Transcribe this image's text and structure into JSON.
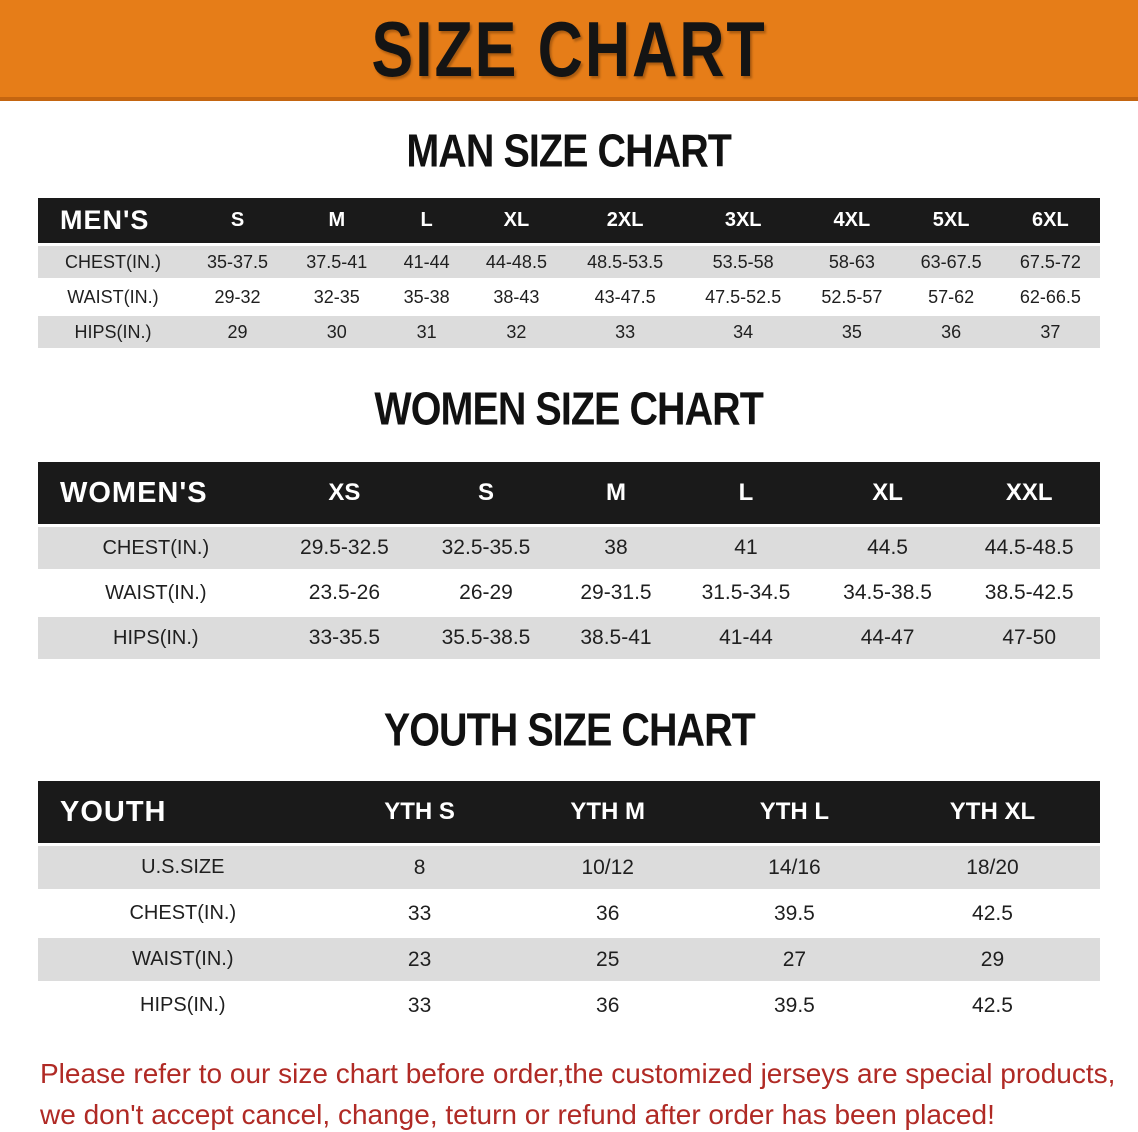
{
  "banner": {
    "title": "SIZE CHART"
  },
  "colors": {
    "banner_bg": "#E67D18",
    "banner_border": "#C46510",
    "header_bar": "#1A1A1A",
    "row_gray": "#DCDCDC",
    "note_red": "#B02A25"
  },
  "men": {
    "heading": "MAN SIZE CHART",
    "label": "MEN'S",
    "columns": [
      "S",
      "M",
      "L",
      "XL",
      "2XL",
      "3XL",
      "4XL",
      "5XL",
      "6XL"
    ],
    "rows": [
      {
        "label": "CHEST(IN.)",
        "shade": "gray",
        "values": [
          "35-37.5",
          "37.5-41",
          "41-44",
          "44-48.5",
          "48.5-53.5",
          "53.5-58",
          "58-63",
          "63-67.5",
          "67.5-72"
        ]
      },
      {
        "label": "WAIST(IN.)",
        "shade": "white",
        "values": [
          "29-32",
          "32-35",
          "35-38",
          "38-43",
          "43-47.5",
          "47.5-52.5",
          "52.5-57",
          "57-62",
          "62-66.5"
        ]
      },
      {
        "label": "HIPS(IN.)",
        "shade": "gray",
        "values": [
          "29",
          "30",
          "31",
          "32",
          "33",
          "34",
          "35",
          "36",
          "37"
        ]
      }
    ]
  },
  "women": {
    "heading": "WOMEN SIZE CHART",
    "label": "WOMEN'S",
    "columns": [
      "XS",
      "S",
      "M",
      "L",
      "XL",
      "XXL"
    ],
    "rows": [
      {
        "label": "CHEST(IN.)",
        "shade": "gray",
        "values": [
          "29.5-32.5",
          "32.5-35.5",
          "38",
          "41",
          "44.5",
          "44.5-48.5"
        ]
      },
      {
        "label": "WAIST(IN.)",
        "shade": "white",
        "values": [
          "23.5-26",
          "26-29",
          "29-31.5",
          "31.5-34.5",
          "34.5-38.5",
          "38.5-42.5"
        ]
      },
      {
        "label": "HIPS(IN.)",
        "shade": "gray",
        "values": [
          "33-35.5",
          "35.5-38.5",
          "38.5-41",
          "41-44",
          "44-47",
          "47-50"
        ]
      }
    ]
  },
  "youth": {
    "heading": "YOUTH SIZE CHART",
    "label": "YOUTH",
    "columns": [
      "YTH S",
      "YTH M",
      "YTH L",
      "YTH XL"
    ],
    "rows": [
      {
        "label": "U.S.SIZE",
        "shade": "gray",
        "values": [
          "8",
          "10/12",
          "14/16",
          "18/20"
        ]
      },
      {
        "label": "CHEST(IN.)",
        "shade": "white",
        "values": [
          "33",
          "36",
          "39.5",
          "42.5"
        ]
      },
      {
        "label": "WAIST(IN.)",
        "shade": "gray",
        "values": [
          "23",
          "25",
          "27",
          "29"
        ]
      },
      {
        "label": "HIPS(IN.)",
        "shade": "white",
        "values": [
          "33",
          "36",
          "39.5",
          "42.5"
        ]
      }
    ]
  },
  "note": {
    "line1": "Please refer to our size chart before order,the customized jerseys are special products,",
    "line2": "we don't accept cancel, change, teturn or refund after order has been placed!"
  }
}
